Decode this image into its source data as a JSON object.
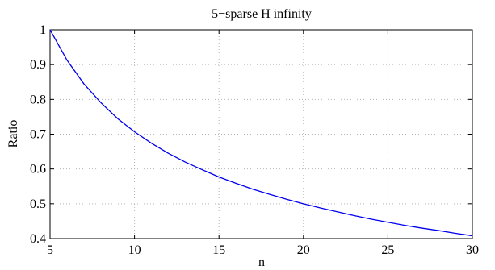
{
  "chart_data": {
    "type": "line",
    "title": "5−sparse H infinity",
    "xlabel": "n",
    "ylabel": "Ratio",
    "xlim": [
      5,
      30
    ],
    "ylim": [
      0.4,
      1
    ],
    "xticks": [
      5,
      10,
      15,
      20,
      25,
      30
    ],
    "xtick_labels": [
      "5",
      "10",
      "15",
      "20",
      "25",
      "30"
    ],
    "yticks": [
      0.4,
      0.5,
      0.6,
      0.7,
      0.8,
      0.9,
      1.0
    ],
    "ytick_labels": [
      "0.4",
      "0.5",
      "0.6",
      "0.7",
      "0.8",
      "0.9",
      "1"
    ],
    "grid": true,
    "line_color": "#0000ee",
    "series": [
      {
        "x": [
          5,
          6,
          7,
          8,
          9,
          10,
          11,
          12,
          13,
          14,
          15,
          16,
          17,
          18,
          19,
          20,
          21,
          22,
          23,
          24,
          25,
          26,
          27,
          28,
          29,
          30
        ],
        "values": [
          1.0,
          0.913,
          0.845,
          0.791,
          0.745,
          0.707,
          0.674,
          0.645,
          0.62,
          0.598,
          0.577,
          0.559,
          0.542,
          0.527,
          0.513,
          0.5,
          0.488,
          0.477,
          0.466,
          0.456,
          0.447,
          0.438,
          0.43,
          0.423,
          0.415,
          0.408
        ]
      }
    ]
  }
}
